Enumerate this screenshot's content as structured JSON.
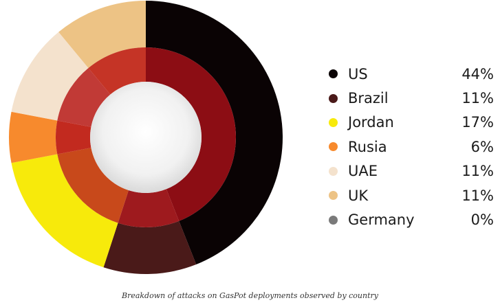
{
  "chart_data": {
    "type": "pie",
    "variant": "donut",
    "legend_position": "right",
    "categories": [
      "US",
      "Brazil",
      "Jordan",
      "Rusia",
      "UAE",
      "UK",
      "Germany"
    ],
    "values": [
      44,
      11,
      17,
      6,
      11,
      11,
      0
    ],
    "value_labels": [
      "44%",
      "11%",
      "17%",
      "6%",
      "11%",
      "11%",
      "0%"
    ],
    "colors": [
      "#0a0304",
      "#4a1a19",
      "#f7ea0b",
      "#f78a2d",
      "#f4e2cd",
      "#edc385",
      "#7a7a7a"
    ],
    "inner_colors": [
      "#8c0d14",
      "#9e1a1e",
      "#c8491b",
      "#c22a1f",
      "#c13a36",
      "#c53426",
      "#7a7a7a"
    ]
  },
  "caption": "Breakdown of attacks on GasPot deployments observed by country"
}
